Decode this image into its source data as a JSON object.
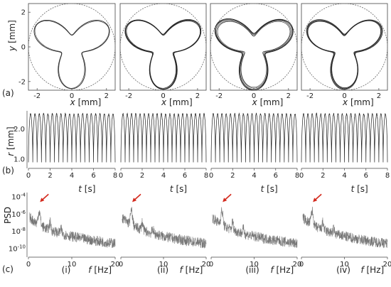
{
  "row_labels": [
    "(a)",
    "(b)",
    "(c)"
  ],
  "col_labels": [
    "(i)",
    "(ii)",
    "(iii)",
    "(iv)"
  ],
  "row_a": {
    "ylabel_var": "y",
    "ylabel_unit": " [mm]",
    "xlabel_var": "x",
    "xlabel_unit": " [mm]",
    "yticks": [
      "2",
      "0",
      "-2"
    ],
    "xticks": [
      "-2",
      "0",
      "2"
    ]
  },
  "row_b": {
    "ylabel_var": "r",
    "ylabel_unit": " [mm]",
    "xlabel_var": "t",
    "xlabel_unit": " [s]",
    "yticks": [
      "2.0",
      "1.0"
    ],
    "xticks": [
      "0",
      "2",
      "4",
      "6",
      "8"
    ]
  },
  "row_c": {
    "ylabel": "PSD",
    "xlabel_var": "f",
    "xlabel_unit": " [Hz]",
    "yticks": [
      "10-4",
      "10-6",
      "10-8",
      "10-10"
    ],
    "xticks": [
      "0",
      "10",
      "20"
    ]
  },
  "colors": {
    "line": "#222222",
    "arrow": "#d42a1e",
    "frame": "#444444",
    "spectrum": "#777777"
  },
  "chart_data": [
    {
      "type": "line",
      "row": "a",
      "description_kind": "trajectory",
      "xlim": [
        -2.5,
        2.5
      ],
      "ylim": [
        -2.5,
        2.5
      ],
      "panels": [
        "(i)",
        "(ii)",
        "(iii)",
        "(iv)"
      ],
      "circle_radius": 2.5
    },
    {
      "type": "line",
      "row": "b",
      "xlim": [
        0,
        8
      ],
      "ylim": [
        0.7,
        2.6
      ],
      "panels": [
        "(i)",
        "(ii)",
        "(iii)",
        "(iv)"
      ],
      "r_min": 0.9,
      "r_max": 2.5,
      "oscillations_in_8s": 20
    },
    {
      "type": "line",
      "row": "c",
      "xlim": [
        0,
        20
      ],
      "ylim_log10": [
        -11,
        -3.5
      ],
      "yscale": "log",
      "panels": [
        "(i)",
        "(ii)",
        "(iii)",
        "(iv)"
      ],
      "peak_frequency_hz": 2.5
    }
  ]
}
